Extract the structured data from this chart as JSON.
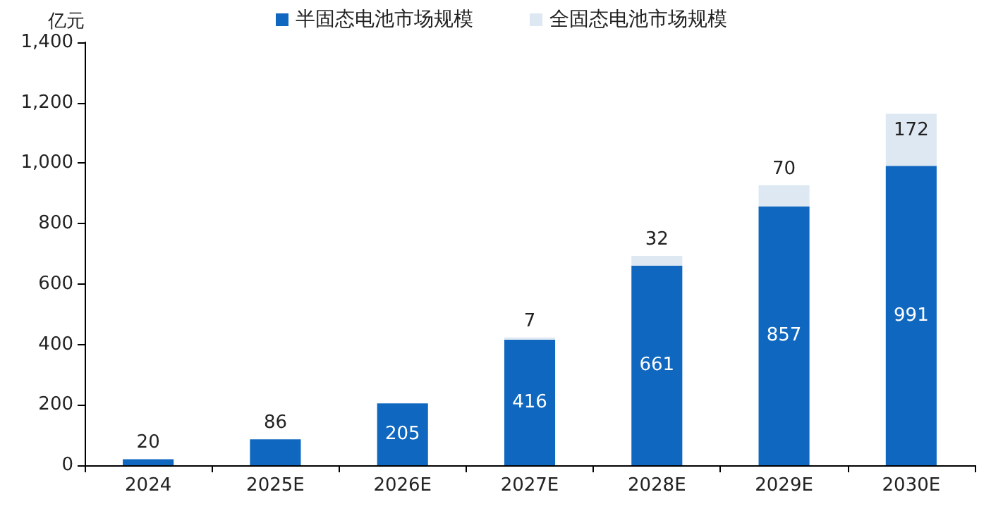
{
  "chart_data": {
    "type": "bar",
    "ylabel": "亿元",
    "categories": [
      "2024",
      "2025E",
      "2026E",
      "2027E",
      "2028E",
      "2029E",
      "2030E"
    ],
    "series": [
      {
        "name": "半固态电池市场规模",
        "color": "#0f67bf",
        "values": [
          20,
          86,
          205,
          416,
          661,
          857,
          991
        ]
      },
      {
        "name": "全固态电池市场规模",
        "color": "#dde8f2",
        "values": [
          null,
          null,
          null,
          7,
          32,
          70,
          172
        ]
      }
    ],
    "stacked": true,
    "data_labels": true,
    "ylim": [
      0,
      1400
    ],
    "yticks": [
      0,
      200,
      400,
      600,
      800,
      {
        "value": 1000,
        "label": "1,000"
      },
      {
        "value": 1200,
        "label": "1,200"
      },
      {
        "value": 1400,
        "label": "1,400"
      }
    ],
    "grid": false,
    "legend": "top"
  }
}
